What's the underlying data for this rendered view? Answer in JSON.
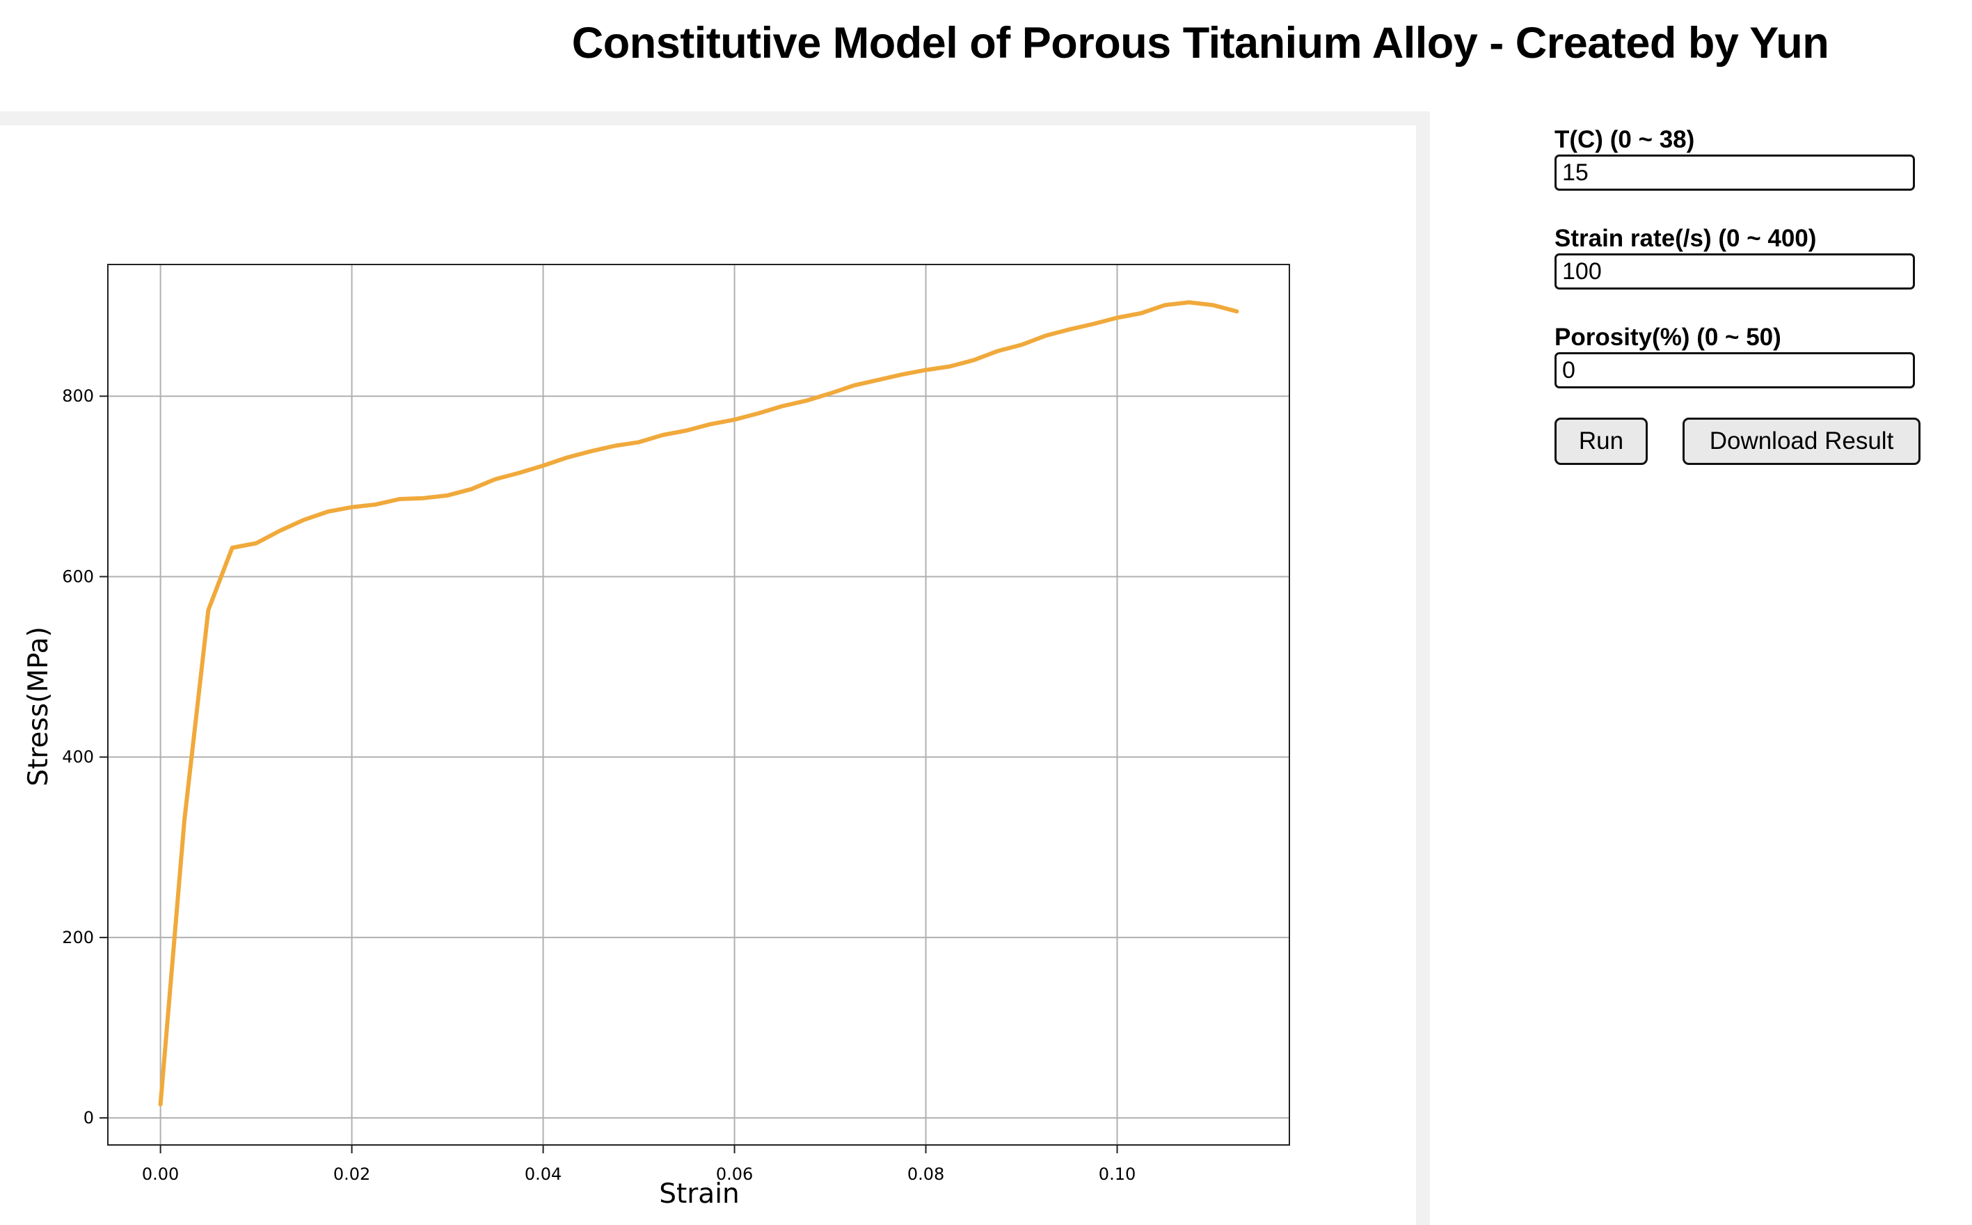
{
  "header": {
    "title": "Constitutive Model of Porous Titanium Alloy - Created by Yun"
  },
  "controls": {
    "temperature": {
      "label": "T(C) (0 ~ 38)",
      "value": "15"
    },
    "strain_rate": {
      "label": "Strain rate(/s) (0 ~ 400)",
      "value": "100"
    },
    "porosity": {
      "label": "Porosity(%) (0 ~ 50)",
      "value": "0"
    },
    "run_label": "Run",
    "download_label": "Download Result"
  },
  "chart_data": {
    "type": "line",
    "title": "",
    "xlabel": "Strain",
    "ylabel": "Stress(MPa)",
    "xlim": [
      -0.0055,
      0.118
    ],
    "ylim": [
      -30,
      946
    ],
    "xticks": [
      0.0,
      0.02,
      0.04,
      0.06,
      0.08,
      0.1
    ],
    "xtick_labels": [
      "0.00",
      "0.02",
      "0.04",
      "0.06",
      "0.08",
      "0.10"
    ],
    "yticks": [
      0,
      200,
      400,
      600,
      800
    ],
    "ytick_labels": [
      "0",
      "200",
      "400",
      "600",
      "800"
    ],
    "grid": true,
    "legend": "none",
    "line_color": "#f0a93b",
    "series": [
      {
        "x": [
          0.0,
          0.0025,
          0.005,
          0.0075,
          0.01,
          0.0125,
          0.015,
          0.0175,
          0.02,
          0.0225,
          0.025,
          0.0275,
          0.03,
          0.0325,
          0.035,
          0.0375,
          0.04,
          0.0425,
          0.045,
          0.0475,
          0.05,
          0.0525,
          0.055,
          0.0575,
          0.06,
          0.0625,
          0.065,
          0.0675,
          0.07,
          0.0725,
          0.075,
          0.0775,
          0.08,
          0.0825,
          0.085,
          0.0875,
          0.09,
          0.0925,
          0.095,
          0.0975,
          0.1,
          0.1025,
          0.105,
          0.1075,
          0.11,
          0.1125
        ],
        "y": [
          15,
          330,
          563,
          632,
          637,
          651,
          663,
          672,
          677,
          680,
          686,
          687,
          690,
          697,
          708,
          715,
          723,
          732,
          739,
          745,
          749,
          757,
          762,
          769,
          774,
          781,
          789,
          795,
          803,
          812,
          818,
          824,
          829,
          833,
          840,
          850,
          857,
          867,
          874,
          880,
          887,
          892,
          901,
          904,
          901,
          894
        ]
      }
    ]
  }
}
